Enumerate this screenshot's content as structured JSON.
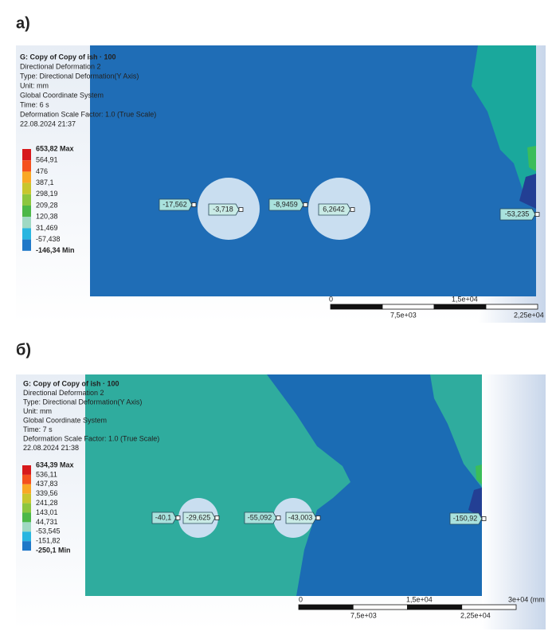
{
  "panels": [
    {
      "label": "а)",
      "info": {
        "title": "G: Copy of Copy of ish · 100",
        "lines": [
          "Directional Deformation 2",
          "Type: Directional Deformation(Y Axis)",
          "Unit: mm",
          "Global Coordinate System",
          "Time: 6 s",
          "Deformation Scale Factor: 1.0 (True Scale)",
          "22.08.2024 21:37"
        ]
      },
      "legend": [
        "653,82 Max",
        "564,91",
        "476",
        "387,1",
        "298,19",
        "209,28",
        "120,38",
        "31,469",
        "-57,438",
        "-146,34 Min"
      ],
      "probes": [
        "-17,562",
        "-3,718",
        "-8,9459",
        "6,2642",
        "-53,235"
      ],
      "scale": {
        "top": [
          "0",
          "1,5e+04"
        ],
        "bottom": [
          "7,5e+03",
          "2,25e+04"
        ]
      }
    },
    {
      "label": "б)",
      "info": {
        "title": "G: Copy of Copy of ish · 100",
        "lines": [
          "Directional Deformation 2",
          "Type: Directional Deformation(Y Axis)",
          "Unit: mm",
          "Global Coordinate System",
          "Time: 7 s",
          "Deformation Scale Factor: 1.0 (True Scale)",
          "22.08.2024 21:38"
        ]
      },
      "legend": [
        "634,39 Max",
        "536,11",
        "437,83",
        "339,56",
        "241,28",
        "143,01",
        "44,731",
        "-53,545",
        "-151,82",
        "-250,1 Min"
      ],
      "probes": [
        "-40,1",
        "-29,625",
        "-55,092",
        "-43,003",
        "-150,92"
      ],
      "scale": {
        "top": [
          "0",
          "1,5e+04",
          "3e+04 (mm"
        ],
        "bottom": [
          "7,5e+03",
          "2,25e+04"
        ]
      }
    }
  ]
}
